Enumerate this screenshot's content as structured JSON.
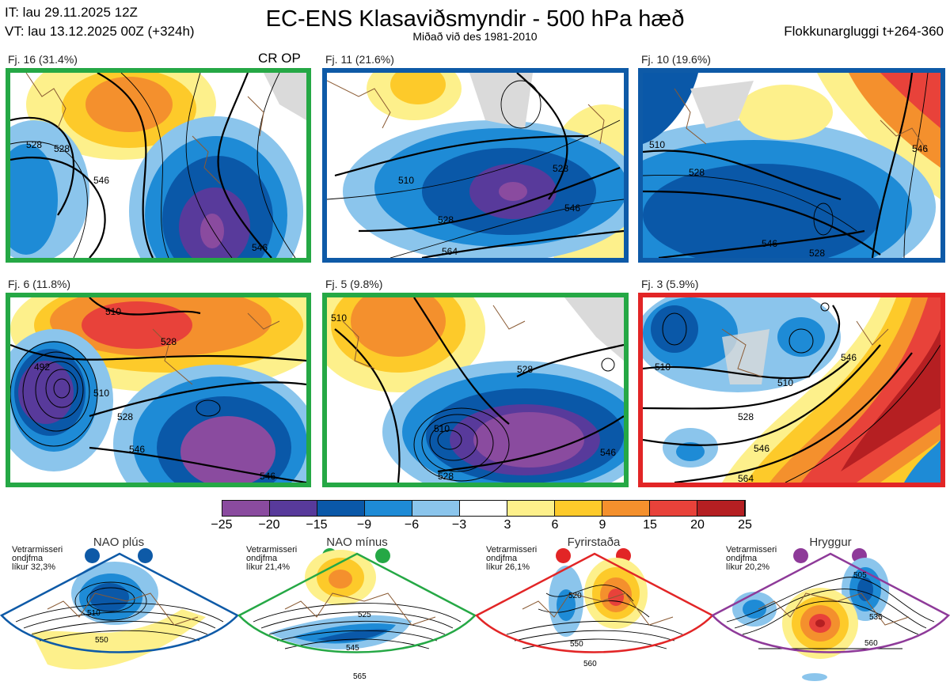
{
  "header": {
    "it": "IT: lau 29.11.2025 12Z",
    "vt": "VT: lau 13.12.2025 00Z  (+324h)",
    "title": "EC-ENS Klasaviðsmyndir - 500 hPa hæð",
    "subtitle": "Miðað við des 1981-2010",
    "window": "Flokkunargluggi t+264-360"
  },
  "colors": {
    "nao_plus": "#0e5aa7",
    "nao_minus": "#25a845",
    "blocking": "#e22526",
    "ridge": "#8e3a99",
    "land_grey": "#dadada",
    "coast": "#8a5a33"
  },
  "panels": [
    {
      "label": "Fj. 16 (31.4%)",
      "extra": "CR OP",
      "regime": "nao_minus",
      "contours": [
        "528",
        "546",
        "546",
        "528"
      ]
    },
    {
      "label": "Fj. 11 (21.6%)",
      "regime": "nao_plus",
      "contours": [
        "510",
        "528",
        "546",
        "564",
        "528"
      ]
    },
    {
      "label": "Fj. 10 (19.6%)",
      "regime": "nao_plus",
      "contours": [
        "510",
        "528",
        "546",
        "528",
        "546"
      ]
    },
    {
      "label": "Fj. 6 (11.8%)",
      "regime": "nao_minus",
      "contours": [
        "510",
        "492",
        "528",
        "546",
        "528",
        "546",
        "510"
      ]
    },
    {
      "label": "Fj. 5 (9.8%)",
      "regime": "nao_minus",
      "contours": [
        "510",
        "528",
        "510",
        "528",
        "546"
      ]
    },
    {
      "label": "Fj. 3 (5.9%)",
      "regime": "blocking",
      "contours": [
        "510",
        "510",
        "528",
        "546",
        "564",
        "546"
      ]
    }
  ],
  "colorbar": {
    "ticks": [
      "−25",
      "−20",
      "−15",
      "−9",
      "−6",
      "−3",
      "3",
      "6",
      "9",
      "15",
      "20",
      "25"
    ],
    "colors": [
      "#8a4b9f",
      "#583a9b",
      "#0a58a8",
      "#1e8bd6",
      "#8bc5ec",
      "#ffffff",
      "#fdf08b",
      "#fdca2a",
      "#f4902d",
      "#e8423a",
      "#b51f22"
    ]
  },
  "regimes": [
    {
      "name": "NAO plús",
      "note": [
        "Vetrarmisseri",
        "ondjfma",
        "líkur 32,3%"
      ],
      "color_key": "nao_plus",
      "contours": [
        "510",
        "550"
      ]
    },
    {
      "name": "NAO mínus",
      "note": [
        "Vetrarmisseri",
        "ondjfma",
        "líkur 21,4%"
      ],
      "color_key": "nao_minus",
      "contours": [
        "525",
        "545",
        "565"
      ]
    },
    {
      "name": "Fyrirstaða",
      "note": [
        "Vetrarmisseri",
        "ondjfma",
        "líkur 26,1%"
      ],
      "color_key": "blocking",
      "contours": [
        "520",
        "550",
        "560"
      ]
    },
    {
      "name": "Hryggur",
      "note": [
        "Vetrarmisseri",
        "ondjfma",
        "líkur 20,2%"
      ],
      "color_key": "ridge",
      "contours": [
        "505",
        "535",
        "560"
      ]
    }
  ]
}
